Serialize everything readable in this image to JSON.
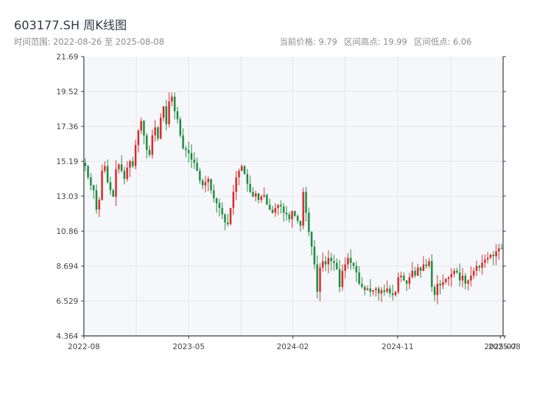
{
  "header": {
    "title": "603177.SH 周K线图",
    "range_label": "时间范围:",
    "range_start": "2022-08-26",
    "range_sep": "至",
    "range_end": "2025-08-08",
    "current_price": "当前价格: 9.79",
    "high_label": "区间高点: 19.99",
    "low_label": "区间低点: 6.06"
  },
  "colors": {
    "up": "#d62728",
    "down": "#1a8a3a",
    "plot_bg": "#f5f7fa",
    "grid": "#e3e6ea",
    "axis": "#333333"
  },
  "chart_data": {
    "type": "candlestick",
    "title": "603177.SH 周K线图",
    "xlabel": "",
    "ylabel": "",
    "ylim": [
      4.364,
      21.69
    ],
    "y_ticks": [
      "4.364",
      "6.529",
      "8.694",
      "10.86",
      "13.03",
      "15.19",
      "17.36",
      "19.52",
      "21.69"
    ],
    "x_ticks": [
      "2022-08",
      "2023-05",
      "2024-02",
      "2024-11",
      "2025-07",
      "2025-08"
    ],
    "grid": true,
    "x_start": "2022-08-26",
    "x_end": "2025-08-08",
    "period": "weekly",
    "weekly_close": [
      14.9,
      14.2,
      13.7,
      13.4,
      12.2,
      12.8,
      14.6,
      14.9,
      13.9,
      13.4,
      13.0,
      14.7,
      15.0,
      14.6,
      14.1,
      14.8,
      15.2,
      14.9,
      16.2,
      17.1,
      17.7,
      16.8,
      15.9,
      15.6,
      16.8,
      17.3,
      16.6,
      17.9,
      18.6,
      17.5,
      18.9,
      19.2,
      18.3,
      17.8,
      16.8,
      16.0,
      15.9,
      15.7,
      15.3,
      15.1,
      14.6,
      14.0,
      13.7,
      13.9,
      14.1,
      13.4,
      12.9,
      12.6,
      12.3,
      11.9,
      11.4,
      11.3,
      12.3,
      13.3,
      14.2,
      14.6,
      14.9,
      14.4,
      13.8,
      13.3,
      13.0,
      13.2,
      12.8,
      13.0,
      13.1,
      12.5,
      12.2,
      12.0,
      12.3,
      12.5,
      12.4,
      12.0,
      11.9,
      11.6,
      12.1,
      11.8,
      11.5,
      11.2,
      13.3,
      12.0,
      10.8,
      9.9,
      8.8,
      7.1,
      8.6,
      9.0,
      8.8,
      9.2,
      9.0,
      8.9,
      8.5,
      7.4,
      8.4,
      8.8,
      9.2,
      8.9,
      8.7,
      8.3,
      7.6,
      7.4,
      7.2,
      7.3,
      7.1,
      7.2,
      7.3,
      7.0,
      7.2,
      7.1,
      7.3,
      7.0,
      6.9,
      7.1,
      8.0,
      8.1,
      7.8,
      7.6,
      8.0,
      8.4,
      8.1,
      8.6,
      8.4,
      8.8,
      8.7,
      9.0,
      7.4,
      6.9,
      7.6,
      7.5,
      7.7,
      7.9,
      8.0,
      8.2,
      8.4,
      8.3,
      7.8,
      8.1,
      7.6,
      7.8,
      8.1,
      8.4,
      8.7,
      8.6,
      8.9,
      9.1,
      9.2,
      9.4,
      9.3,
      9.6,
      9.8,
      9.79
    ]
  }
}
